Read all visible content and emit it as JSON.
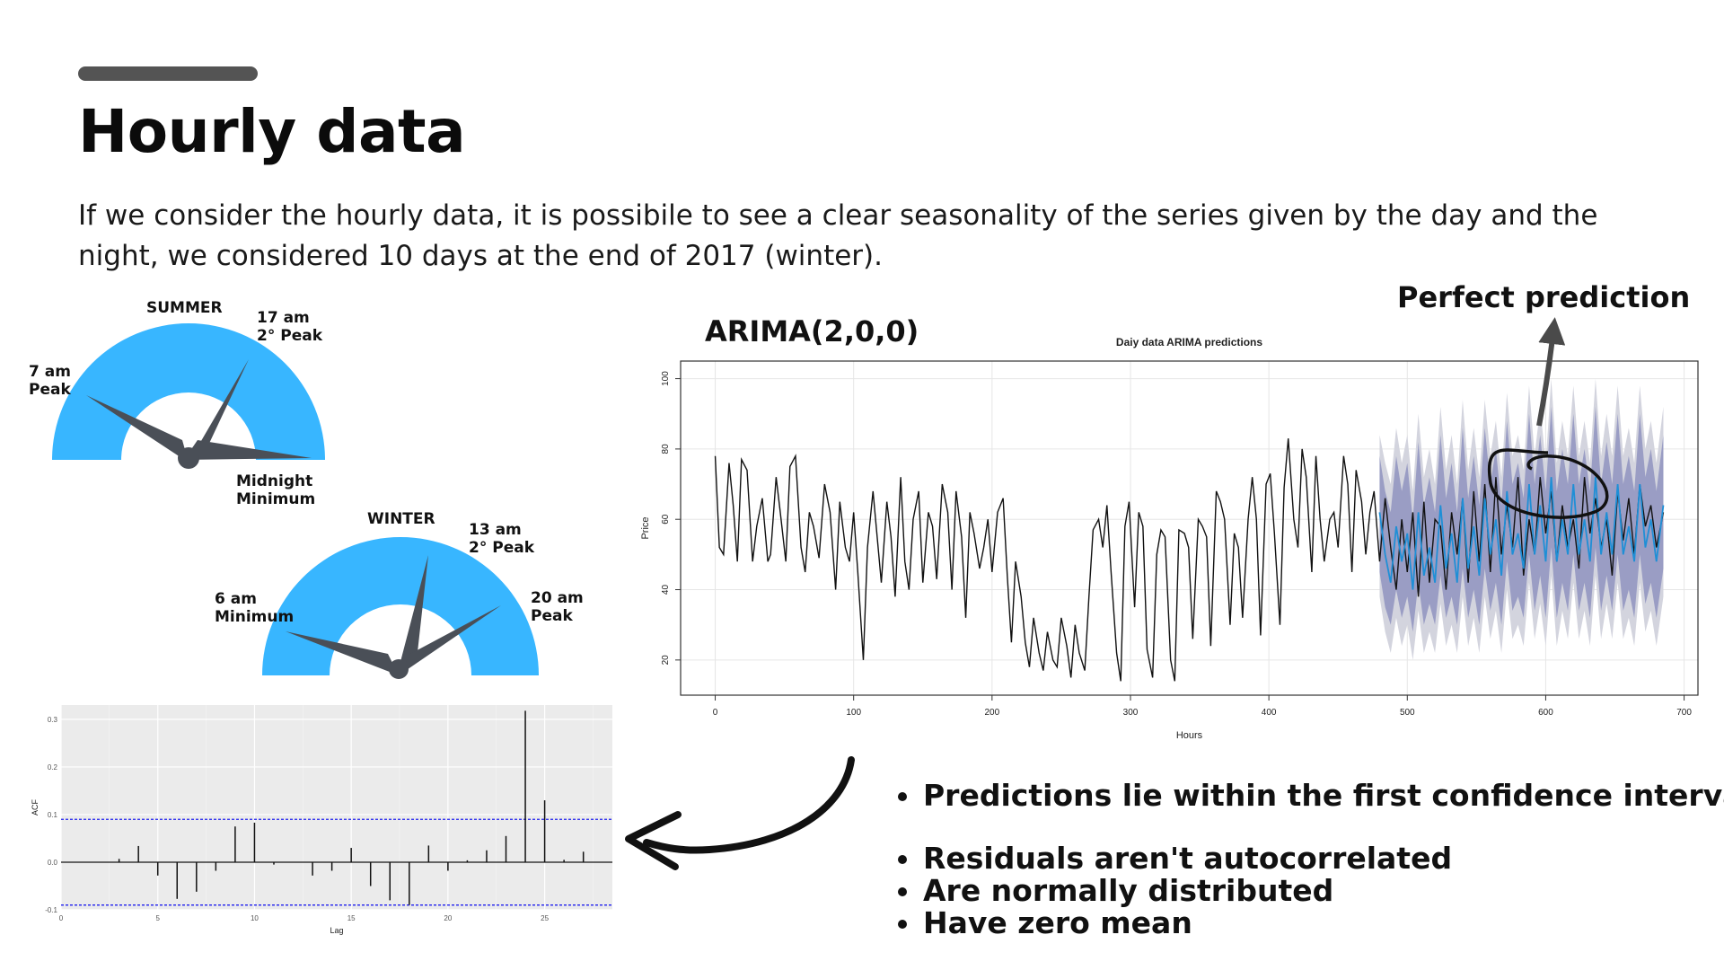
{
  "slide": {
    "title": "Hourly data",
    "intro": "If we consider the hourly data, it is possibile to see a clear seasonality of the series given by the day and the night, we considered 10 days at the end of 2017 (winter).",
    "arima_title": "ARIMA(2,0,0)",
    "annotation": "Perfect prediction"
  },
  "gauges": {
    "summer": {
      "title": "SUMMER",
      "labels": [
        {
          "line1": "7 am",
          "line2": "Peak"
        },
        {
          "line1": "17 am",
          "line2": "2° Peak"
        },
        {
          "line1": "Midnight",
          "line2": "Minimum"
        }
      ]
    },
    "winter": {
      "title": "WINTER",
      "labels": [
        {
          "line1": "6 am",
          "line2": "Minimum"
        },
        {
          "line1": "13 am",
          "line2": "2° Peak"
        },
        {
          "line1": "20 am",
          "line2": "Peak"
        }
      ]
    },
    "colors": {
      "arc": "#38b6ff",
      "needle": "#4a4f57"
    }
  },
  "bullets": [
    "Predictions lie within the first confidence interval",
    "Residuals aren't autocorrelated",
    "Are normally distributed",
    "Have zero mean"
  ],
  "chart_data": [
    {
      "type": "line",
      "title": "Daiy data ARIMA predictions",
      "xlabel": "Hours",
      "ylabel": "Price",
      "xlim": [
        -25,
        710
      ],
      "ylim": [
        10,
        105
      ],
      "xticks": [
        0,
        100,
        200,
        300,
        400,
        500,
        600,
        700
      ],
      "yticks": [
        20,
        40,
        60,
        80,
        100
      ],
      "grid": true,
      "colors": {
        "observed": "#111111",
        "forecast": "#1f8fd6",
        "band_80": "#8f93bf",
        "band_95": "#d3d4de"
      },
      "observed": {
        "x": [
          0,
          3,
          6,
          10,
          13,
          16,
          19,
          23,
          27,
          30,
          34,
          38,
          40,
          44,
          47,
          51,
          54,
          58,
          62,
          65,
          68,
          71,
          75,
          79,
          83,
          87,
          90,
          94,
          97,
          100,
          103,
          107,
          110,
          114,
          117,
          120,
          124,
          127,
          130,
          134,
          137,
          140,
          143,
          147,
          150,
          154,
          157,
          160,
          164,
          168,
          171,
          174,
          178,
          181,
          184,
          187,
          191,
          194,
          197,
          200,
          204,
          208,
          211,
          214,
          217,
          221,
          224,
          227,
          230,
          234,
          237,
          240,
          244,
          247,
          250,
          254,
          257,
          260,
          263,
          267,
          270,
          273,
          277,
          280,
          283,
          286,
          290,
          293,
          296,
          299,
          303,
          306,
          309,
          312,
          316,
          319,
          322,
          325,
          329,
          332,
          335,
          339,
          342,
          345,
          349,
          352,
          355,
          358,
          362,
          365,
          368,
          372,
          375,
          378,
          381,
          385,
          388,
          391,
          394,
          398,
          401,
          404,
          408,
          411,
          414,
          418,
          421,
          424,
          427,
          431,
          434,
          437,
          440,
          444,
          447,
          450,
          454,
          457,
          460,
          463,
          467,
          470,
          473,
          476,
          480,
          484,
          488,
          492,
          496,
          500,
          504,
          508,
          512,
          516,
          520,
          524,
          528,
          532,
          536,
          540,
          544,
          548,
          552,
          556,
          560,
          564,
          568,
          572,
          576,
          580,
          584,
          588,
          592,
          596,
          600,
          604,
          608,
          612,
          616,
          620,
          624,
          628,
          632,
          636,
          640,
          644,
          648,
          652,
          656,
          660,
          664,
          668,
          672,
          676,
          680,
          685
        ],
        "y": [
          78,
          52,
          50,
          76,
          64,
          48,
          77,
          74,
          48,
          58,
          66,
          48,
          50,
          72,
          62,
          48,
          75,
          78,
          52,
          45,
          62,
          58,
          49,
          70,
          62,
          40,
          65,
          52,
          48,
          62,
          45,
          20,
          52,
          68,
          55,
          42,
          65,
          55,
          38,
          72,
          48,
          40,
          60,
          68,
          42,
          62,
          58,
          43,
          70,
          62,
          40,
          68,
          55,
          32,
          62,
          56,
          46,
          52,
          60,
          45,
          62,
          66,
          44,
          25,
          48,
          38,
          25,
          18,
          32,
          22,
          17,
          28,
          20,
          18,
          32,
          24,
          15,
          30,
          22,
          17,
          38,
          57,
          60,
          52,
          64,
          45,
          22,
          14,
          58,
          65,
          35,
          62,
          58,
          23,
          15,
          50,
          57,
          55,
          20,
          14,
          57,
          56,
          52,
          26,
          60,
          58,
          55,
          24,
          68,
          65,
          60,
          30,
          56,
          52,
          32,
          60,
          72,
          60,
          27,
          70,
          73,
          56,
          30,
          69,
          83,
          60,
          52,
          80,
          72,
          45,
          78,
          60,
          48,
          60,
          62,
          52,
          78,
          70,
          45,
          74,
          65,
          50,
          62,
          68,
          48,
          66,
          52,
          40,
          60,
          45,
          62,
          38,
          65,
          42,
          60,
          58,
          40,
          62,
          50,
          66,
          42,
          68,
          48,
          70,
          45,
          72,
          50,
          64,
          52,
          72,
          44,
          60,
          50,
          72,
          56,
          68,
          48,
          64,
          52,
          60,
          46,
          72,
          56,
          66,
          52,
          60,
          44,
          68,
          54,
          66,
          50,
          70,
          58,
          64,
          52,
          62
        ]
      },
      "forecast": {
        "x": [
          480,
          484,
          488,
          492,
          496,
          500,
          504,
          508,
          512,
          516,
          520,
          524,
          528,
          532,
          536,
          540,
          544,
          548,
          552,
          556,
          560,
          564,
          568,
          572,
          576,
          580,
          584,
          588,
          592,
          596,
          600,
          604,
          608,
          612,
          616,
          620,
          624,
          628,
          632,
          636,
          640,
          644,
          648,
          652,
          656,
          660,
          664,
          668,
          672,
          676,
          680,
          685
        ],
        "mean": [
          62,
          50,
          42,
          58,
          48,
          56,
          40,
          62,
          44,
          52,
          42,
          64,
          46,
          56,
          42,
          66,
          46,
          58,
          44,
          66,
          50,
          60,
          44,
          68,
          50,
          56,
          46,
          70,
          50,
          64,
          48,
          72,
          48,
          60,
          50,
          70,
          50,
          60,
          48,
          72,
          50,
          62,
          50,
          70,
          50,
          58,
          48,
          70,
          52,
          60,
          48,
          64
        ],
        "lo80": [
          45,
          35,
          30,
          40,
          32,
          38,
          28,
          42,
          30,
          36,
          30,
          44,
          32,
          38,
          30,
          46,
          32,
          40,
          30,
          46,
          34,
          42,
          30,
          48,
          34,
          38,
          32,
          50,
          34,
          44,
          32,
          52,
          32,
          42,
          34,
          50,
          34,
          42,
          32,
          52,
          34,
          44,
          34,
          50,
          34,
          40,
          32,
          50,
          36,
          42,
          32,
          46
        ],
        "hi80": [
          78,
          68,
          62,
          78,
          68,
          76,
          60,
          82,
          64,
          72,
          62,
          84,
          66,
          76,
          62,
          86,
          66,
          78,
          64,
          86,
          70,
          80,
          64,
          88,
          70,
          76,
          66,
          90,
          70,
          84,
          68,
          92,
          68,
          80,
          70,
          90,
          70,
          80,
          68,
          92,
          70,
          82,
          70,
          90,
          70,
          78,
          68,
          90,
          72,
          80,
          68,
          84
        ],
        "lo95": [
          38,
          28,
          22,
          32,
          24,
          30,
          20,
          34,
          22,
          28,
          22,
          36,
          24,
          30,
          22,
          38,
          24,
          32,
          22,
          38,
          26,
          34,
          22,
          40,
          26,
          30,
          24,
          42,
          26,
          36,
          24,
          44,
          24,
          34,
          26,
          42,
          26,
          34,
          24,
          44,
          26,
          36,
          26,
          42,
          26,
          32,
          24,
          42,
          28,
          34,
          24,
          38
        ],
        "hi95": [
          84,
          76,
          70,
          86,
          76,
          84,
          68,
          90,
          72,
          80,
          70,
          92,
          74,
          84,
          70,
          94,
          74,
          86,
          72,
          94,
          78,
          88,
          72,
          96,
          78,
          84,
          74,
          98,
          78,
          92,
          76,
          100,
          76,
          88,
          78,
          98,
          78,
          88,
          76,
          100,
          78,
          90,
          78,
          98,
          78,
          86,
          76,
          98,
          80,
          88,
          76,
          92
        ]
      }
    },
    {
      "type": "bar",
      "title": "",
      "xlabel": "Lag",
      "ylabel": "ACF",
      "xlim": [
        0,
        28.5
      ],
      "ylim": [
        -0.1,
        0.33
      ],
      "xticks": [
        0,
        5,
        10,
        15,
        20,
        25
      ],
      "yticks": [
        -0.1,
        0.0,
        0.1,
        0.2,
        0.3
      ],
      "confidence_bound": 0.09,
      "grid": true,
      "colors": {
        "bar": "#111111",
        "bound": "#2020ee",
        "panel": "#ebebeb"
      },
      "lags": [
        1,
        2,
        3,
        4,
        5,
        6,
        7,
        8,
        9,
        10,
        11,
        12,
        13,
        14,
        15,
        16,
        17,
        18,
        19,
        20,
        21,
        22,
        23,
        24,
        25,
        26,
        27
      ],
      "values": [
        0.0,
        0.0,
        0.007,
        0.034,
        -0.028,
        -0.077,
        -0.062,
        -0.018,
        0.075,
        0.083,
        -0.005,
        0.0,
        -0.028,
        -0.018,
        0.03,
        -0.05,
        -0.08,
        -0.09,
        0.035,
        -0.018,
        0.004,
        0.025,
        0.055,
        0.318,
        0.13,
        0.005,
        0.022
      ]
    }
  ]
}
